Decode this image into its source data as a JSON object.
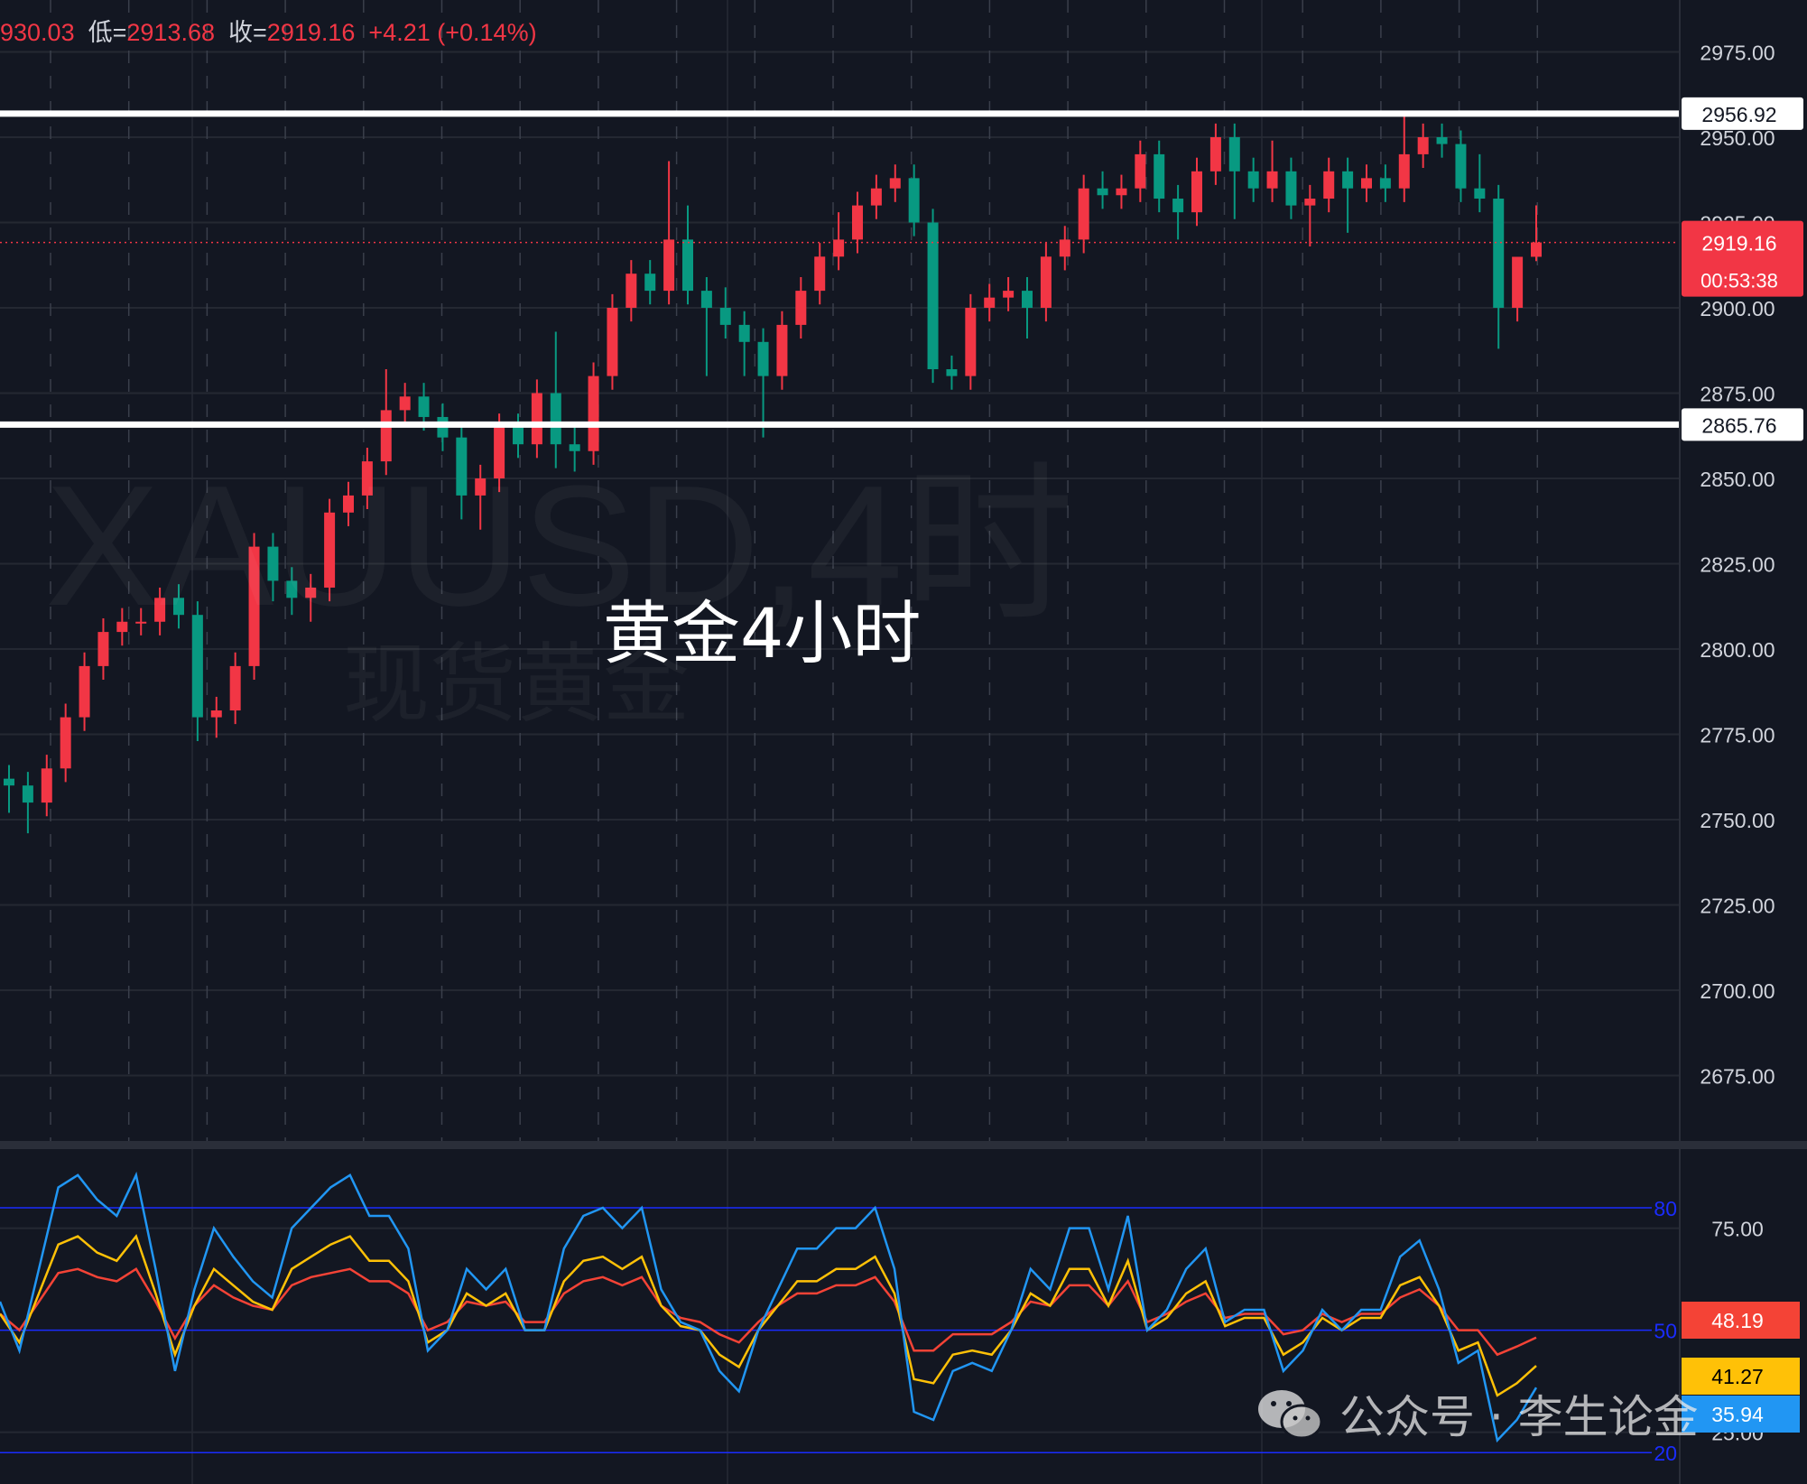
{
  "header": {
    "high_partial": "930.03",
    "low_label": "低=",
    "low": "2913.68",
    "close_label": "收=",
    "close": "2919.16",
    "change": "+4.21",
    "change_pct": "(+0.14%)"
  },
  "watermark": {
    "symbol": "XAUUSD,4时",
    "name": "现货黄金"
  },
  "annotation": "黄金4小时",
  "wechat": {
    "text": "公众号 · 李生论金"
  },
  "colors": {
    "up": "#f23645",
    "down": "#089981",
    "background": "#131722",
    "fast": "#2196f3",
    "mid": "#ffc107",
    "slow": "#f44336",
    "level_line": "#ffffff"
  },
  "chart_data": [
    {
      "type": "candlestick",
      "ylim": [
        2650,
        2990
      ],
      "y_ticks": [
        "2975.00",
        "2950.00",
        "2925.00",
        "2900.00",
        "2875.00",
        "2850.00",
        "2825.00",
        "2800.00",
        "2775.00",
        "2750.00",
        "2725.00",
        "2700.00",
        "2675.00"
      ],
      "grid": true,
      "levels": [
        {
          "value": 2956.92,
          "label": "2956.92"
        },
        {
          "value": 2865.76,
          "label": "2865.76"
        }
      ],
      "last_price": {
        "value": 2919.16,
        "label": "2919.16",
        "countdown": "00:53:38"
      },
      "candles_ohlc": [
        [
          2762,
          2766,
          2752,
          2760
        ],
        [
          2760,
          2764,
          2746,
          2755
        ],
        [
          2755,
          2769,
          2751,
          2765
        ],
        [
          2765,
          2784,
          2761,
          2780
        ],
        [
          2780,
          2799,
          2776,
          2795
        ],
        [
          2795,
          2809,
          2791,
          2805
        ],
        [
          2805,
          2812,
          2801,
          2808
        ],
        [
          2808,
          2812,
          2804,
          2808
        ],
        [
          2808,
          2818,
          2804,
          2815
        ],
        [
          2815,
          2819,
          2806,
          2810
        ],
        [
          2810,
          2814,
          2773,
          2780
        ],
        [
          2780,
          2786,
          2774,
          2782
        ],
        [
          2782,
          2799,
          2778,
          2795
        ],
        [
          2795,
          2834,
          2791,
          2830
        ],
        [
          2830,
          2834,
          2814,
          2820
        ],
        [
          2820,
          2824,
          2810,
          2815
        ],
        [
          2815,
          2822,
          2808,
          2818
        ],
        [
          2818,
          2844,
          2814,
          2840
        ],
        [
          2840,
          2849,
          2836,
          2845
        ],
        [
          2845,
          2859,
          2841,
          2855
        ],
        [
          2855,
          2882,
          2851,
          2870
        ],
        [
          2870,
          2878,
          2866,
          2874
        ],
        [
          2874,
          2878,
          2864,
          2868
        ],
        [
          2868,
          2872,
          2858,
          2862
        ],
        [
          2862,
          2866,
          2838,
          2845
        ],
        [
          2845,
          2854,
          2835,
          2850
        ],
        [
          2850,
          2869,
          2846,
          2865
        ],
        [
          2865,
          2869,
          2856,
          2860
        ],
        [
          2860,
          2879,
          2856,
          2875
        ],
        [
          2875,
          2893,
          2853,
          2860
        ],
        [
          2860,
          2866,
          2852,
          2858
        ],
        [
          2858,
          2884,
          2854,
          2880
        ],
        [
          2880,
          2904,
          2876,
          2900
        ],
        [
          2900,
          2914,
          2896,
          2910
        ],
        [
          2910,
          2914,
          2901,
          2905
        ],
        [
          2905,
          2943,
          2901,
          2920
        ],
        [
          2920,
          2930,
          2901,
          2905
        ],
        [
          2905,
          2909,
          2880,
          2900
        ],
        [
          2900,
          2906,
          2891,
          2895
        ],
        [
          2895,
          2899,
          2880,
          2890
        ],
        [
          2890,
          2894,
          2862,
          2880
        ],
        [
          2880,
          2899,
          2876,
          2895
        ],
        [
          2895,
          2909,
          2891,
          2905
        ],
        [
          2905,
          2919,
          2901,
          2915
        ],
        [
          2915,
          2928,
          2911,
          2920
        ],
        [
          2920,
          2934,
          2916,
          2930
        ],
        [
          2930,
          2939,
          2926,
          2935
        ],
        [
          2935,
          2942,
          2931,
          2938
        ],
        [
          2938,
          2942,
          2921,
          2925
        ],
        [
          2925,
          2929,
          2878,
          2882
        ],
        [
          2882,
          2886,
          2876,
          2880
        ],
        [
          2880,
          2904,
          2876,
          2900
        ],
        [
          2900,
          2907,
          2896,
          2903
        ],
        [
          2903,
          2909,
          2899,
          2905
        ],
        [
          2905,
          2909,
          2891,
          2900
        ],
        [
          2900,
          2919,
          2896,
          2915
        ],
        [
          2915,
          2924,
          2911,
          2920
        ],
        [
          2920,
          2939,
          2916,
          2935
        ],
        [
          2935,
          2940,
          2929,
          2933
        ],
        [
          2933,
          2939,
          2929,
          2935
        ],
        [
          2935,
          2949,
          2931,
          2945
        ],
        [
          2945,
          2949,
          2928,
          2932
        ],
        [
          2932,
          2936,
          2920,
          2928
        ],
        [
          2928,
          2944,
          2924,
          2940
        ],
        [
          2940,
          2954,
          2936,
          2950
        ],
        [
          2950,
          2954,
          2926,
          2940
        ],
        [
          2940,
          2944,
          2931,
          2935
        ],
        [
          2935,
          2949,
          2931,
          2940
        ],
        [
          2940,
          2944,
          2926,
          2930
        ],
        [
          2930,
          2936,
          2918,
          2932
        ],
        [
          2932,
          2944,
          2928,
          2940
        ],
        [
          2940,
          2944,
          2922,
          2935
        ],
        [
          2935,
          2942,
          2931,
          2938
        ],
        [
          2938,
          2942,
          2931,
          2935
        ],
        [
          2935,
          2957,
          2931,
          2945
        ],
        [
          2945,
          2954,
          2941,
          2950
        ],
        [
          2950,
          2954,
          2944,
          2948
        ],
        [
          2948,
          2952,
          2931,
          2935
        ],
        [
          2935,
          2945,
          2928,
          2932
        ],
        [
          2932,
          2936,
          2888,
          2900
        ],
        [
          2900,
          2914,
          2896,
          2914.95
        ],
        [
          2914.95,
          2930.03,
          2913.68,
          2919.16
        ]
      ]
    },
    {
      "type": "line",
      "ylim": [
        13,
        96
      ],
      "y_ticks": [
        "75.00",
        "25.00"
      ],
      "ref_levels": [
        {
          "value": 80,
          "label": "80"
        },
        {
          "value": 50,
          "label": "50"
        },
        {
          "value": 20,
          "label": "20"
        }
      ],
      "series": [
        {
          "color": "#2196f3",
          "last": "35.94",
          "values": [
            57,
            45,
            65,
            85,
            88,
            82,
            78,
            88,
            65,
            40,
            60,
            75,
            68,
            62,
            58,
            75,
            80,
            85,
            88,
            78,
            78,
            70,
            45,
            50,
            65,
            60,
            65,
            50,
            50,
            70,
            78,
            80,
            75,
            80,
            60,
            52,
            50,
            40,
            35,
            50,
            60,
            70,
            70,
            75,
            75,
            80,
            65,
            30,
            28,
            40,
            42,
            40,
            50,
            65,
            60,
            75,
            75,
            60,
            78,
            50,
            55,
            65,
            70,
            52,
            55,
            55,
            40,
            45,
            55,
            50,
            55,
            55,
            68,
            72,
            60,
            42,
            45,
            23,
            28,
            35.94
          ]
        },
        {
          "color": "#ffc107",
          "last": "41.27",
          "values": [
            54,
            47,
            59,
            71,
            73,
            69,
            67,
            73,
            59,
            44,
            56,
            65,
            61,
            57,
            55,
            65,
            68,
            71,
            73,
            67,
            67,
            62,
            47,
            50,
            59,
            56,
            59,
            50,
            50,
            62,
            67,
            68,
            65,
            68,
            56,
            51,
            50,
            44,
            41,
            50,
            56,
            62,
            62,
            65,
            65,
            68,
            59,
            38,
            37,
            44,
            45,
            44,
            50,
            59,
            56,
            65,
            65,
            56,
            67,
            50,
            53,
            59,
            62,
            51,
            53,
            53,
            44,
            47,
            53,
            50,
            53,
            53,
            61,
            63,
            56,
            45,
            47,
            34,
            37,
            41.27
          ]
        },
        {
          "color": "#f44336",
          "last": "48.19",
          "values": [
            54,
            50,
            57,
            64,
            65,
            63,
            62,
            65,
            57,
            48,
            56,
            61,
            58,
            56,
            55,
            61,
            63,
            64,
            65,
            62,
            62,
            59,
            50,
            52,
            57,
            56,
            57,
            52,
            52,
            59,
            62,
            63,
            61,
            63,
            56,
            53,
            52,
            49,
            47,
            52,
            56,
            59,
            59,
            61,
            61,
            63,
            57,
            45,
            45,
            49,
            49,
            49,
            52,
            57,
            56,
            61,
            61,
            56,
            62,
            52,
            54,
            57,
            59,
            53,
            54,
            54,
            49,
            50,
            54,
            52,
            54,
            54,
            58,
            60,
            56,
            50,
            50,
            44,
            46,
            48.19
          ]
        }
      ]
    }
  ]
}
